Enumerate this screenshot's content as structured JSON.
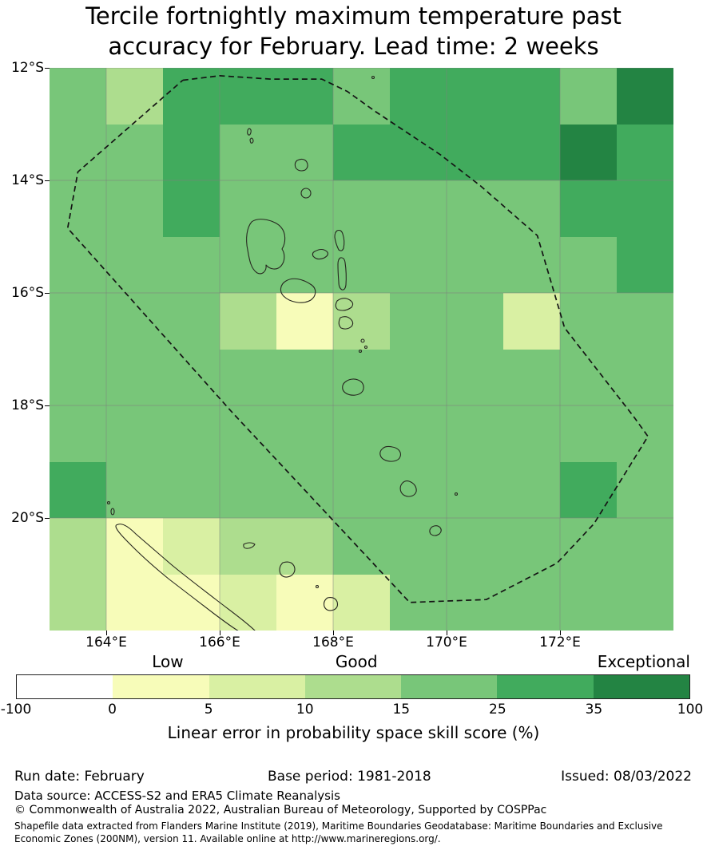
{
  "title": {
    "line1": "Tercile fortnightly maximum temperature past",
    "line2": "accuracy for February. Lead time: 2 weeks"
  },
  "legend": {
    "quality_labels": [
      "Low",
      "Good",
      "Exceptional"
    ],
    "caption": "Linear error in probability space skill score (%)"
  },
  "footer": {
    "run_date": "Run date: February",
    "base_period": "Base period: 1981-2018",
    "issued": "Issued: 08/03/2022",
    "data_source": "Data source: ACCESS-S2 and ERA5 Climate Reanalysis",
    "copyright": "© Commonwealth of Australia 2022, Australian Bureau of Meteorology, Supported by COSPPac",
    "shapefile_line1": "Shapefile data extracted from Flanders Marine Institute (2019), Maritime Boundaries Geodatabase: Maritime Boundaries and Exclusive",
    "shapefile_line2": "Economic Zones (200NM), version 11. Available online at http://www.marineregions.org/."
  },
  "chart_data": {
    "type": "heatmap",
    "title": "Tercile fortnightly maximum temperature past accuracy for February. Lead time: 2 weeks",
    "colorbar_label": "Linear error in probability space skill score (%)",
    "lon_range": [
      163,
      174
    ],
    "lat_range_south": [
      12,
      22
    ],
    "x_ticks": [
      {
        "label": "164°E",
        "lon": 164
      },
      {
        "label": "166°E",
        "lon": 166
      },
      {
        "label": "168°E",
        "lon": 168
      },
      {
        "label": "170°E",
        "lon": 170
      },
      {
        "label": "172°E",
        "lon": 172
      }
    ],
    "y_ticks": [
      {
        "label": "12°S",
        "lat": 12
      },
      {
        "label": "14°S",
        "lat": 14
      },
      {
        "label": "16°S",
        "lat": 16
      },
      {
        "label": "18°S",
        "lat": 18
      },
      {
        "label": "20°S",
        "lat": 20
      }
    ],
    "grid_lons": [
      164,
      166,
      168,
      170,
      172
    ],
    "grid_lats": [
      12,
      14,
      16,
      18,
      20
    ],
    "cell_size_deg": 1,
    "values_orientation": "rows 12S to 22S top-to-bottom, cols 163E to 174E left-to-right, skill score %",
    "values": [
      [
        20,
        12,
        30,
        30,
        30,
        20,
        30,
        30,
        30,
        20,
        50
      ],
      [
        20,
        20,
        30,
        20,
        20,
        30,
        30,
        30,
        30,
        50,
        30
      ],
      [
        20,
        20,
        30,
        20,
        20,
        20,
        20,
        20,
        20,
        30,
        30
      ],
      [
        20,
        20,
        20,
        20,
        20,
        20,
        20,
        20,
        20,
        20,
        30
      ],
      [
        20,
        20,
        20,
        12,
        2,
        12,
        20,
        20,
        7,
        20,
        20
      ],
      [
        20,
        20,
        20,
        20,
        20,
        20,
        20,
        20,
        20,
        20,
        20
      ],
      [
        20,
        20,
        20,
        20,
        20,
        20,
        20,
        20,
        20,
        20,
        20
      ],
      [
        30,
        20,
        20,
        20,
        20,
        20,
        20,
        20,
        20,
        30,
        20
      ],
      [
        12,
        2,
        7,
        12,
        12,
        20,
        20,
        20,
        20,
        20,
        20
      ],
      [
        12,
        2,
        2,
        7,
        2,
        7,
        20,
        20,
        20,
        20,
        20
      ]
    ],
    "colormap_bins": [
      -100,
      0,
      5,
      10,
      15,
      25,
      35,
      100
    ],
    "colorbar_tick_labels": [
      "-100",
      "0",
      "5",
      "10",
      "15",
      "25",
      "35",
      "100"
    ],
    "colormap_colors": [
      "#ffffff",
      "#f7fcb9",
      "#d9f0a3",
      "#addd8e",
      "#78c679",
      "#41ab5d",
      "#238443"
    ],
    "eez_boundary_lon_latS": [
      [
        165.35,
        12.22
      ],
      [
        166.0,
        12.14
      ],
      [
        166.9,
        12.2
      ],
      [
        167.8,
        12.2
      ],
      [
        168.25,
        12.42
      ],
      [
        168.75,
        12.78
      ],
      [
        169.9,
        13.55
      ],
      [
        170.6,
        14.1
      ],
      [
        171.6,
        14.98
      ],
      [
        172.08,
        16.62
      ],
      [
        173.3,
        18.2
      ],
      [
        173.55,
        18.55
      ],
      [
        172.6,
        20.1
      ],
      [
        171.95,
        20.8
      ],
      [
        170.7,
        21.45
      ],
      [
        169.35,
        21.5
      ],
      [
        166.2,
        18.1
      ],
      [
        163.32,
        14.85
      ],
      [
        163.5,
        13.85
      ],
      [
        165.35,
        12.22
      ]
    ]
  }
}
